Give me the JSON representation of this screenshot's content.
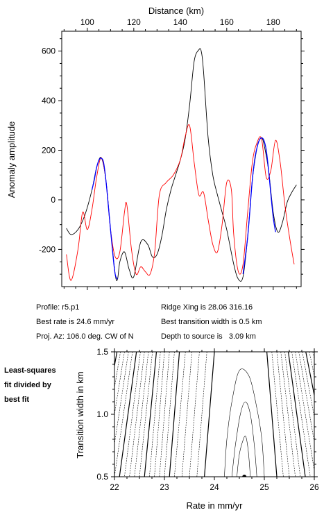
{
  "chart_data": [
    {
      "type": "line",
      "xlabel": "Distance (km)",
      "ylabel": "Anomaly amplitude",
      "xlim": [
        89,
        192
      ],
      "ylim": [
        -350,
        680
      ],
      "xticks": [
        100,
        120,
        140,
        160,
        180
      ],
      "yticks": [
        -200,
        0,
        200,
        400,
        600
      ],
      "x_axis_position": "top",
      "grid": false,
      "colors": {
        "observed": "#000000",
        "model": "#ff0000",
        "fit_window": "#0000ff"
      },
      "series": [
        {
          "x": [
            91,
            93,
            96,
            99,
            102,
            104,
            106,
            108,
            110,
            112,
            113,
            114,
            116,
            118,
            120,
            123,
            126,
            128,
            130,
            132,
            134,
            136,
            138,
            140,
            142,
            144,
            146,
            148,
            149,
            150,
            152,
            154,
            156,
            158,
            160,
            163,
            165,
            167,
            169,
            171,
            173,
            174,
            175,
            176,
            178,
            180,
            182,
            184,
            186,
            188,
            190
          ],
          "y": [
            -115,
            -140,
            -120,
            -60,
            40,
            130,
            170,
            80,
            -120,
            -300,
            -320,
            -250,
            -210,
            -280,
            -310,
            -170,
            -180,
            -230,
            -220,
            -150,
            -40,
            40,
            100,
            160,
            240,
            380,
            560,
            605,
            600,
            520,
            250,
            100,
            20,
            -50,
            -120,
            -260,
            -320,
            -310,
            -150,
            80,
            210,
            240,
            250,
            225,
            120,
            -50,
            -130,
            -90,
            -10,
            30,
            60
          ]
        },
        {
          "x": [
            91,
            93,
            96,
            98,
            100,
            102,
            104,
            106,
            108,
            110,
            112,
            114,
            116,
            117,
            119,
            121,
            123,
            125,
            127,
            129,
            131,
            134,
            137,
            140,
            142,
            144,
            146,
            148,
            150,
            152,
            154,
            156,
            158,
            160,
            162,
            163,
            165,
            167,
            169,
            171,
            173,
            175,
            177,
            179,
            181,
            183,
            185,
            187,
            189
          ],
          "y": [
            -220,
            -325,
            -200,
            -50,
            -120,
            -40,
            90,
            170,
            80,
            -120,
            -230,
            -210,
            -50,
            -20,
            -200,
            -300,
            -270,
            -290,
            -300,
            -210,
            20,
            70,
            100,
            160,
            250,
            300,
            150,
            20,
            30,
            -80,
            -180,
            -210,
            -100,
            70,
            40,
            -140,
            -290,
            -260,
            -50,
            150,
            230,
            245,
            90,
            120,
            240,
            150,
            -20,
            -150,
            -260
          ]
        },
        {
          "x": [
            102,
            103,
            104,
            105,
            106,
            107,
            108,
            109,
            110,
            111,
            112,
            113
          ],
          "y": [
            40,
            80,
            130,
            160,
            168,
            150,
            80,
            -20,
            -120,
            -220,
            -300,
            -320
          ]
        },
        {
          "x": [
            167,
            168,
            169,
            170,
            171,
            172,
            173,
            174,
            175,
            176,
            177,
            178,
            179,
            180,
            181
          ],
          "y": [
            -300,
            -230,
            -150,
            -40,
            80,
            160,
            210,
            240,
            250,
            240,
            200,
            120,
            20,
            -70,
            -130
          ]
        }
      ]
    },
    {
      "type": "contour",
      "xlabel": "Rate in mm/yr",
      "ylabel": "Transition width in km",
      "xlim": [
        22,
        26
      ],
      "ylim": [
        0.5,
        1.5
      ],
      "xticks": [
        22,
        23,
        24,
        25,
        26
      ],
      "yticks": [
        0.5,
        1.0,
        1.5
      ],
      "best_fit": {
        "rate": 24.6,
        "width": 0.5
      },
      "left_contours_top": [
        22.05,
        22.12,
        22.2,
        22.28,
        22.36,
        22.44,
        22.52,
        22.6,
        22.68,
        22.76,
        22.84,
        22.92,
        23.0,
        23.1,
        23.2,
        23.3,
        23.42,
        23.55,
        23.7,
        23.85,
        24.0
      ],
      "left_contours_bottom": [
        21.6,
        21.7,
        21.8,
        21.9,
        22.0,
        22.1,
        22.2,
        22.3,
        22.4,
        22.5,
        22.6,
        22.7,
        22.8,
        22.9,
        23.0,
        23.1,
        23.2,
        23.35,
        23.5,
        23.65,
        23.8
      ],
      "right_contours_top": [
        25.05,
        25.15,
        25.25,
        25.33,
        25.41,
        25.48,
        25.55,
        25.62,
        25.69,
        25.76,
        25.83,
        25.9,
        25.97
      ],
      "right_contours_bottom": [
        25.25,
        25.38,
        25.5,
        25.62,
        25.72,
        25.82,
        25.92,
        26.02,
        26.12,
        26.22,
        26.32,
        26.42,
        26.52
      ],
      "inner_contours": [
        {
          "x": [
            24.2,
            24.25,
            24.35,
            24.5,
            24.7,
            24.85,
            24.95,
            25.0
          ],
          "y": [
            0.5,
            0.8,
            1.1,
            1.35,
            1.3,
            1.05,
            0.8,
            0.5
          ]
        },
        {
          "x": [
            24.35,
            24.42,
            24.52,
            24.62,
            24.72,
            24.8,
            24.85
          ],
          "y": [
            0.5,
            0.75,
            1.0,
            1.1,
            1.0,
            0.75,
            0.5
          ]
        },
        {
          "x": [
            24.45,
            24.5,
            24.58,
            24.63,
            24.68,
            24.72
          ],
          "y": [
            0.5,
            0.68,
            0.8,
            0.82,
            0.7,
            0.5
          ]
        }
      ],
      "side_note": "Least-squares\nfit divided by\nbest fit"
    }
  ],
  "info": {
    "profile": "Profile: r5.p1",
    "best_rate": "Best rate is 24.6 mm/yr",
    "proj_az": "Proj. Az: 106.0 deg. CW of N",
    "ridge_xing": "Ridge Xing is 28.06 316.16",
    "transition": "Best transition width is 0.5 km",
    "depth": "Depth to source is   3.09 km"
  }
}
